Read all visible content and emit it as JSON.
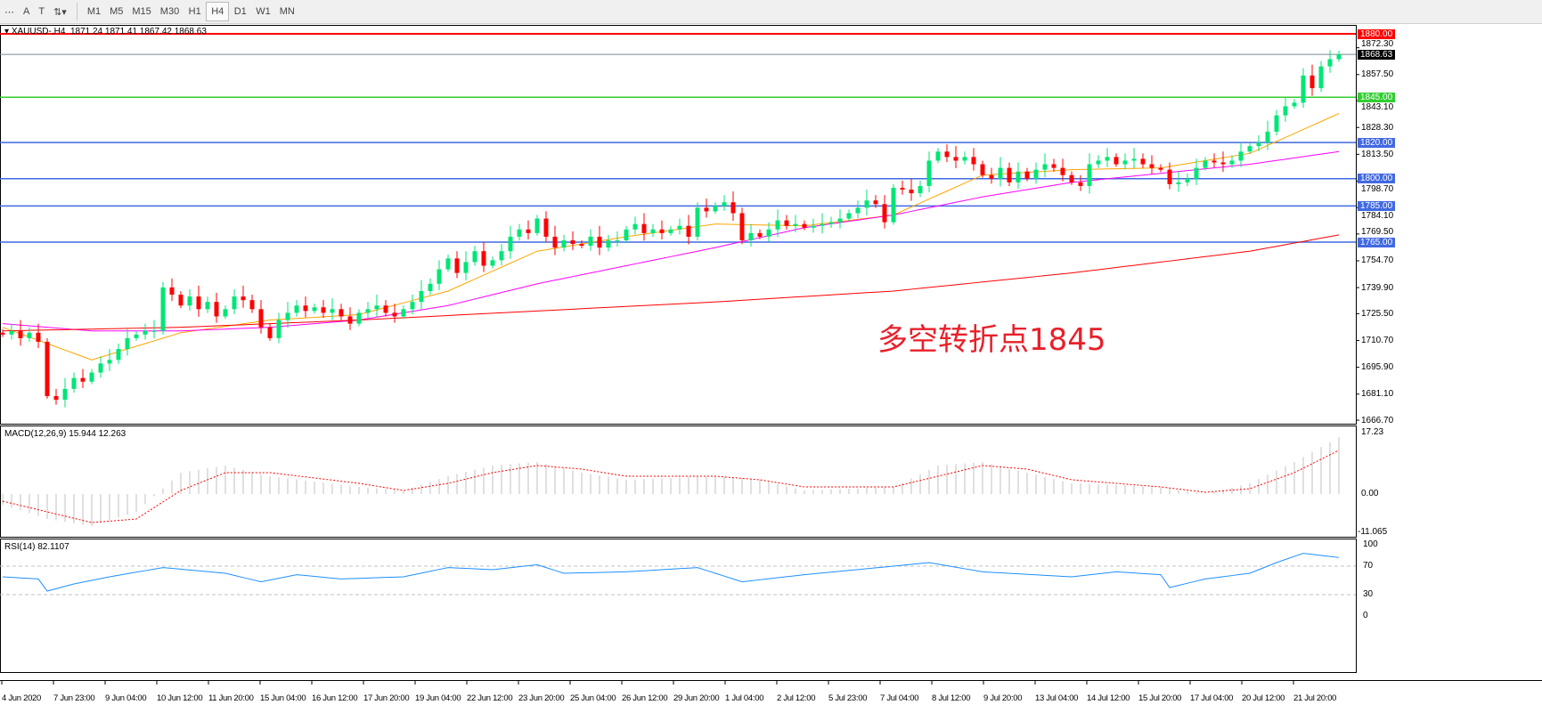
{
  "toolbar": {
    "tools": [
      {
        "name": "fibo-fan",
        "glyph": "⋯"
      },
      {
        "name": "text",
        "glyph": "A"
      },
      {
        "name": "text-label",
        "glyph": "T"
      },
      {
        "name": "arrows",
        "glyph": "⇅▾"
      }
    ],
    "timeframes": [
      "M1",
      "M5",
      "M15",
      "M30",
      "H1",
      "H4",
      "D1",
      "W1",
      "MN"
    ],
    "active": "H4"
  },
  "header": {
    "symbol": "XAUUSD-,H4",
    "ohlc": "1871.24 1871.41 1867.42 1868.63"
  },
  "annotation": "多空转折点1845",
  "price_axis": [
    "1872.30",
    "1857.50",
    "1843.10",
    "1828.30",
    "1813.50",
    "1798.70",
    "1784.10",
    "1769.50",
    "1754.70",
    "1739.90",
    "1725.50",
    "1710.70",
    "1695.90",
    "1681.10",
    "1666.70"
  ],
  "levels": [
    {
      "label": "1880.00",
      "value": 1880,
      "color": "#ff0000"
    },
    {
      "label": "1845.00",
      "value": 1845,
      "color": "#32cd32"
    },
    {
      "label": "1820.00",
      "value": 1820,
      "color": "#4169e1"
    },
    {
      "label": "1800.00",
      "value": 1800,
      "color": "#4169e1"
    },
    {
      "label": "1785.00",
      "value": 1785,
      "color": "#4169e1"
    },
    {
      "label": "1765.00",
      "value": 1765,
      "color": "#4169e1"
    }
  ],
  "current_price": {
    "label": "1868.63",
    "value": 1868.63
  },
  "colors": {
    "bull": "#00e676",
    "bear": "#ff0000",
    "ma_fast": "#ffa500",
    "ma_mid": "#ff00ff",
    "ma_slow": "#ff0000",
    "macd_hist": "#c0c0c0",
    "macd_signal": "#ff0000",
    "rsi": "#1e90ff"
  },
  "closes": [
    1714,
    1716,
    1712,
    1715,
    1710,
    1680,
    1678,
    1684,
    1690,
    1688,
    1693,
    1698,
    1700,
    1706,
    1712,
    1714,
    1716,
    1716,
    1740,
    1736,
    1730,
    1735,
    1728,
    1732,
    1724,
    1728,
    1735,
    1733,
    1728,
    1718,
    1712,
    1722,
    1726,
    1730,
    1727,
    1729,
    1726,
    1728,
    1724,
    1720,
    1726,
    1728,
    1730,
    1726,
    1724,
    1728,
    1732,
    1738,
    1742,
    1750,
    1756,
    1748,
    1754,
    1760,
    1752,
    1755,
    1760,
    1768,
    1772,
    1770,
    1778,
    1768,
    1762,
    1766,
    1764,
    1763,
    1768,
    1762,
    1766,
    1766,
    1772,
    1775,
    1770,
    1772,
    1770,
    1772,
    1774,
    1768,
    1784,
    1782,
    1785,
    1787,
    1781,
    1766,
    1770,
    1768,
    1772,
    1777,
    1774,
    1775,
    1773,
    1774,
    1775,
    1776,
    1778,
    1781,
    1784,
    1788,
    1786,
    1776,
    1795,
    1794,
    1792,
    1796,
    1810,
    1815,
    1812,
    1810,
    1812,
    1808,
    1802,
    1800,
    1806,
    1798,
    1804,
    1800,
    1805,
    1808,
    1806,
    1802,
    1798,
    1796,
    1808,
    1810,
    1812,
    1808,
    1810,
    1811,
    1808,
    1806,
    1805,
    1797,
    1798,
    1800,
    1806,
    1810,
    1809,
    1808,
    1810,
    1815,
    1818,
    1820,
    1826,
    1835,
    1840,
    1842,
    1857,
    1850,
    1862,
    1866,
    1868.63
  ],
  "ma_fast": [
    [
      0,
      1718
    ],
    [
      10,
      1700
    ],
    [
      20,
      1715
    ],
    [
      30,
      1722
    ],
    [
      40,
      1725
    ],
    [
      50,
      1738
    ],
    [
      60,
      1760
    ],
    [
      70,
      1768
    ],
    [
      80,
      1775
    ],
    [
      90,
      1774
    ],
    [
      100,
      1780
    ],
    [
      110,
      1802
    ],
    [
      120,
      1805
    ],
    [
      130,
      1806
    ],
    [
      140,
      1814
    ],
    [
      150,
      1836
    ]
  ],
  "ma_mid": [
    [
      0,
      1720
    ],
    [
      10,
      1716
    ],
    [
      20,
      1716
    ],
    [
      30,
      1718
    ],
    [
      40,
      1722
    ],
    [
      50,
      1730
    ],
    [
      60,
      1742
    ],
    [
      70,
      1752
    ],
    [
      80,
      1762
    ],
    [
      90,
      1773
    ],
    [
      100,
      1780
    ],
    [
      110,
      1790
    ],
    [
      120,
      1798
    ],
    [
      130,
      1803
    ],
    [
      140,
      1808
    ],
    [
      150,
      1815
    ]
  ],
  "ma_slow": [
    [
      0,
      1716
    ],
    [
      20,
      1718
    ],
    [
      40,
      1722
    ],
    [
      60,
      1727
    ],
    [
      80,
      1732
    ],
    [
      100,
      1738
    ],
    [
      120,
      1748
    ],
    [
      140,
      1760
    ],
    [
      150,
      1769
    ]
  ],
  "macd": {
    "label": "MACD(12,26,9) 15.944 12.263",
    "axis": [
      "17.23",
      "0.00",
      "-11.065"
    ],
    "hist": [
      [
        0,
        -3
      ],
      [
        5,
        -7
      ],
      [
        10,
        -9
      ],
      [
        15,
        -5
      ],
      [
        20,
        6
      ],
      [
        25,
        8
      ],
      [
        30,
        5
      ],
      [
        40,
        2
      ],
      [
        45,
        1
      ],
      [
        50,
        5
      ],
      [
        55,
        8
      ],
      [
        60,
        9
      ],
      [
        65,
        6
      ],
      [
        70,
        4
      ],
      [
        80,
        5
      ],
      [
        85,
        4
      ],
      [
        90,
        1
      ],
      [
        100,
        2
      ],
      [
        105,
        8
      ],
      [
        110,
        9
      ],
      [
        115,
        6
      ],
      [
        120,
        3
      ],
      [
        130,
        2
      ],
      [
        135,
        0
      ],
      [
        140,
        3
      ],
      [
        145,
        9
      ],
      [
        150,
        15.944
      ]
    ],
    "signal": [
      [
        0,
        -2
      ],
      [
        5,
        -5
      ],
      [
        10,
        -8
      ],
      [
        15,
        -7
      ],
      [
        20,
        1
      ],
      [
        25,
        6
      ],
      [
        30,
        6
      ],
      [
        40,
        3
      ],
      [
        45,
        1
      ],
      [
        50,
        3
      ],
      [
        55,
        6
      ],
      [
        60,
        8
      ],
      [
        65,
        7
      ],
      [
        70,
        5
      ],
      [
        80,
        5
      ],
      [
        85,
        4
      ],
      [
        90,
        2
      ],
      [
        100,
        2
      ],
      [
        105,
        5
      ],
      [
        110,
        8
      ],
      [
        115,
        7
      ],
      [
        120,
        4
      ],
      [
        130,
        2
      ],
      [
        135,
        0.5
      ],
      [
        140,
        1.5
      ],
      [
        145,
        6
      ],
      [
        150,
        12.263
      ]
    ]
  },
  "rsi": {
    "label": "RSI(14) 82.1107",
    "axis": [
      "100",
      "70",
      "30",
      "0"
    ],
    "values": [
      [
        0,
        55
      ],
      [
        4,
        52
      ],
      [
        5,
        35
      ],
      [
        8,
        45
      ],
      [
        12,
        55
      ],
      [
        18,
        68
      ],
      [
        25,
        60
      ],
      [
        29,
        48
      ],
      [
        33,
        58
      ],
      [
        38,
        52
      ],
      [
        45,
        55
      ],
      [
        50,
        68
      ],
      [
        55,
        65
      ],
      [
        60,
        72
      ],
      [
        63,
        60
      ],
      [
        70,
        62
      ],
      [
        78,
        68
      ],
      [
        83,
        48
      ],
      [
        90,
        58
      ],
      [
        100,
        70
      ],
      [
        104,
        75
      ],
      [
        110,
        62
      ],
      [
        120,
        55
      ],
      [
        125,
        62
      ],
      [
        130,
        58
      ],
      [
        131,
        40
      ],
      [
        135,
        52
      ],
      [
        140,
        60
      ],
      [
        143,
        75
      ],
      [
        146,
        88
      ],
      [
        150,
        82.11
      ]
    ]
  },
  "time_axis": [
    "4 Jun 2020",
    "7 Jun 23:00",
    "9 Jun 04:00",
    "10 Jun 12:00",
    "11 Jun 20:00",
    "15 Jun 04:00",
    "16 Jun 12:00",
    "17 Jun 20:00",
    "19 Jun 04:00",
    "22 Jun 12:00",
    "23 Jun 20:00",
    "25 Jun 04:00",
    "26 Jun 12:00",
    "29 Jun 20:00",
    "1 Jul 04:00",
    "2 Jul 12:00",
    "5 Jul 23:00",
    "7 Jul 04:00",
    "8 Jul 12:00",
    "9 Jul 20:00",
    "13 Jul 04:00",
    "14 Jul 12:00",
    "15 Jul 20:00",
    "17 Jul 04:00",
    "20 Jul 12:00",
    "21 Jul 20:00"
  ]
}
